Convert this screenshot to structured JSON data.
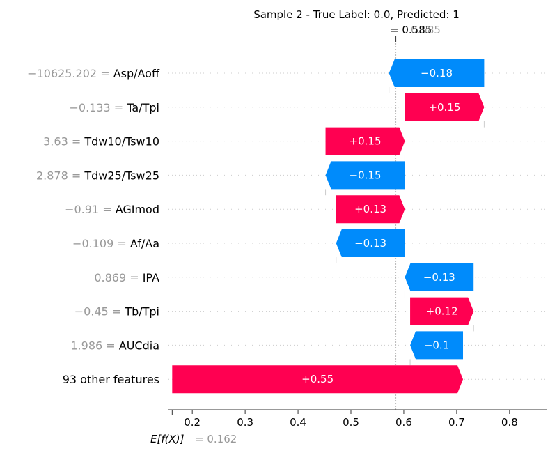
{
  "chart_data": {
    "type": "waterfall",
    "title": "Sample 2 - True Label: 0.0, Predicted: 1",
    "fx_label": "= 0.585",
    "fx_label_ghost": "0.585",
    "fx_value": 0.585,
    "base_label": "E[f(X)]",
    "base_value_label": "= 0.162",
    "base_value": 0.162,
    "xlim": [
      0.155,
      0.87
    ],
    "xticks": [
      0.2,
      0.3,
      0.4,
      0.5,
      0.6,
      0.7,
      0.8
    ],
    "xtick_labels": [
      "0.2",
      "0.3",
      "0.4",
      "0.5",
      "0.6",
      "0.7",
      "0.8"
    ],
    "grid": "dotted horizontal",
    "colors": {
      "positive": "#ff0051",
      "negative": "#008bfb",
      "value": "#999999",
      "text": "#000000"
    },
    "rows": [
      {
        "value_text": "−10625.202",
        "feature": "Asp/Aoff",
        "contribution": -0.18,
        "label": "−0.18"
      },
      {
        "value_text": "−0.133",
        "feature": "Ta/Tpi",
        "contribution": 0.15,
        "label": "+0.15"
      },
      {
        "value_text": "3.63",
        "feature": "Tdw10/Tsw10",
        "contribution": 0.15,
        "label": "+0.15"
      },
      {
        "value_text": "2.878",
        "feature": "Tdw25/Tsw25",
        "contribution": -0.15,
        "label": "−0.15"
      },
      {
        "value_text": "−0.91",
        "feature": "AGImod",
        "contribution": 0.13,
        "label": "+0.13"
      },
      {
        "value_text": "−0.109",
        "feature": "Af/Aa",
        "contribution": -0.13,
        "label": "−0.13"
      },
      {
        "value_text": "0.869",
        "feature": "IPA",
        "contribution": -0.13,
        "label": "−0.13"
      },
      {
        "value_text": "−0.45",
        "feature": "Tb/Tpi",
        "contribution": 0.12,
        "label": "+0.12"
      },
      {
        "value_text": "1.986",
        "feature": "AUCdia",
        "contribution": -0.1,
        "label": "−0.1"
      },
      {
        "value_text": "",
        "feature": "93 other features",
        "contribution": 0.55,
        "label": "+0.55"
      }
    ]
  }
}
